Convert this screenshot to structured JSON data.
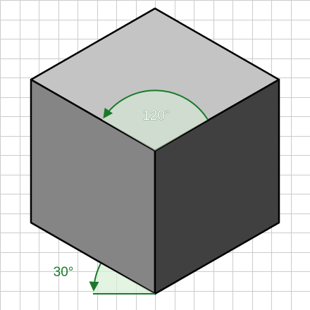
{
  "colors": {
    "background": "#ffffff",
    "grid": "#cccccc",
    "cube_top": "#c4c4c4",
    "cube_left": "#858585",
    "cube_right": "#404040",
    "edge": "#000000",
    "annotation": "#1a7a2a",
    "annotation_fill": "#d9f0d9"
  },
  "annotations": {
    "top_angle_label": "120°",
    "bottom_angle_label": "30°"
  },
  "icons": {
    "top_arrow": "arrowhead-icon",
    "bottom_arrow": "arrowhead-icon"
  }
}
